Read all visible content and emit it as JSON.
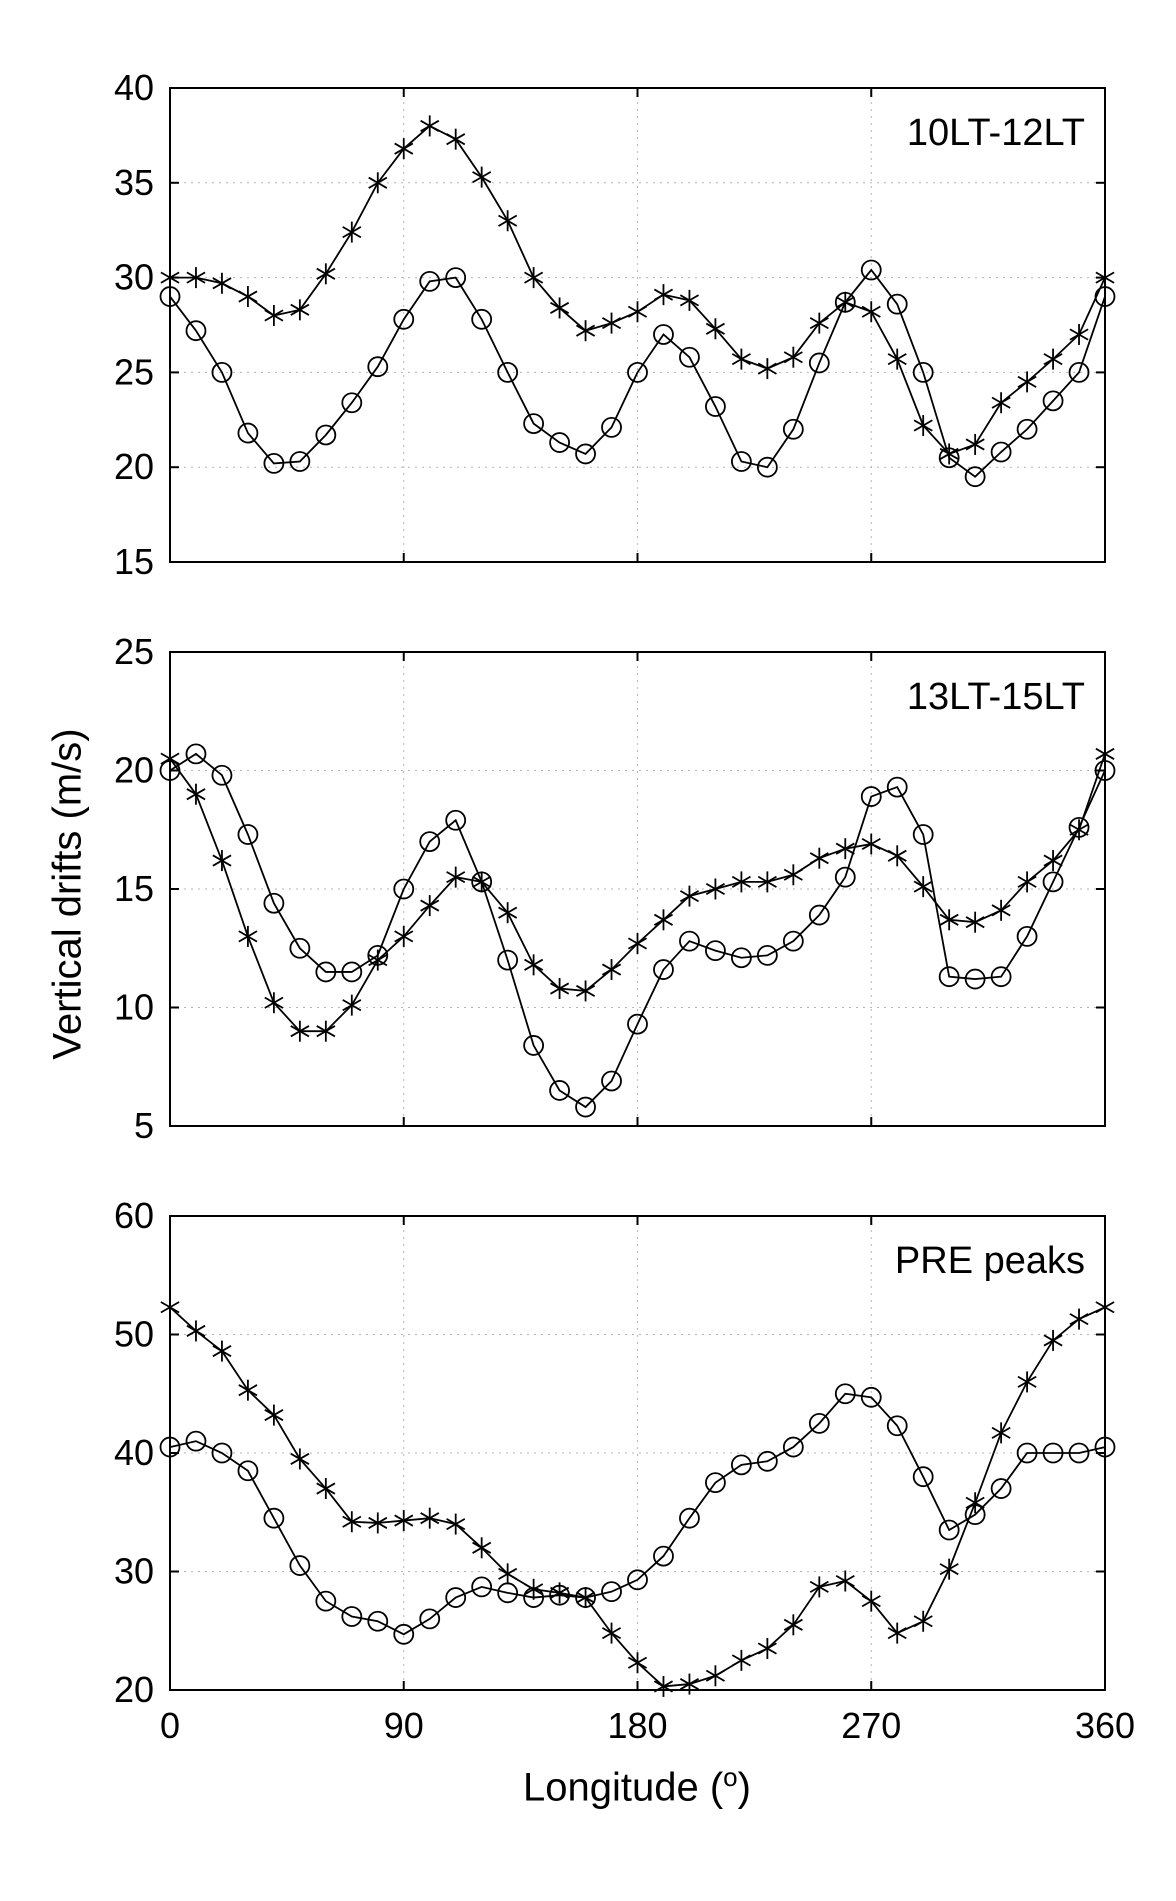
{
  "figure": {
    "ylabel": "Vertical drifts (m/s)",
    "xlabel_pre": "Longitude (",
    "xlabel_sup": "o",
    "xlabel_post": ")",
    "line_color": "#000000",
    "grid_color": "#b5b5b5",
    "background": "#ffffff"
  },
  "chart_data": [
    {
      "type": "line",
      "title": "10LT-12LT",
      "xlabel": "Longitude (deg)",
      "ylabel": "Vertical drifts (m/s)",
      "xlim": [
        0,
        360
      ],
      "ylim": [
        15,
        40
      ],
      "xticks": [
        0,
        90,
        180,
        270,
        360
      ],
      "yticks": [
        15,
        20,
        25,
        30,
        35,
        40
      ],
      "grid": true,
      "x": [
        0,
        10,
        20,
        30,
        40,
        50,
        60,
        70,
        80,
        90,
        100,
        110,
        120,
        130,
        140,
        150,
        160,
        170,
        180,
        190,
        200,
        210,
        220,
        230,
        240,
        250,
        260,
        270,
        280,
        290,
        300,
        310,
        320,
        330,
        340,
        350,
        360
      ],
      "series": [
        {
          "name": "asterisk-series",
          "marker": "asterisk",
          "values": [
            30,
            30,
            29.7,
            29,
            28,
            28.3,
            30.2,
            32.4,
            35,
            36.8,
            38,
            37.3,
            35.3,
            33,
            30,
            28.4,
            27.2,
            27.6,
            28.2,
            29.1,
            28.8,
            27.3,
            25.7,
            25.2,
            25.8,
            27.6,
            28.7,
            28.2,
            25.7,
            22.2,
            20.7,
            21.2,
            23.4,
            24.5,
            25.7,
            27,
            30
          ]
        },
        {
          "name": "circle-series",
          "marker": "circle",
          "values": [
            29,
            27.2,
            25,
            21.8,
            20.2,
            20.3,
            21.7,
            23.4,
            25.3,
            27.8,
            29.8,
            30,
            27.8,
            25,
            22.3,
            21.3,
            20.7,
            22.1,
            25,
            27,
            25.8,
            23.2,
            20.3,
            20,
            22,
            25.5,
            28.7,
            30.4,
            28.6,
            25,
            20.5,
            19.5,
            20.8,
            22,
            23.5,
            25,
            29
          ]
        }
      ]
    },
    {
      "type": "line",
      "title": "13LT-15LT",
      "xlabel": "Longitude (deg)",
      "ylabel": "Vertical drifts (m/s)",
      "xlim": [
        0,
        360
      ],
      "ylim": [
        5,
        25
      ],
      "xticks": [
        0,
        90,
        180,
        270,
        360
      ],
      "yticks": [
        5,
        10,
        15,
        20,
        25
      ],
      "grid": true,
      "x": [
        0,
        10,
        20,
        30,
        40,
        50,
        60,
        70,
        80,
        90,
        100,
        110,
        120,
        130,
        140,
        150,
        160,
        170,
        180,
        190,
        200,
        210,
        220,
        230,
        240,
        250,
        260,
        270,
        280,
        290,
        300,
        310,
        320,
        330,
        340,
        350,
        360
      ],
      "series": [
        {
          "name": "asterisk-series",
          "marker": "asterisk",
          "values": [
            20.5,
            19,
            16.2,
            13,
            10.2,
            9,
            9,
            10.1,
            12,
            13,
            14.3,
            15.5,
            15.3,
            14,
            11.8,
            10.8,
            10.7,
            11.6,
            12.7,
            13.7,
            14.7,
            15,
            15.3,
            15.3,
            15.6,
            16.3,
            16.7,
            16.9,
            16.4,
            15.1,
            13.7,
            13.6,
            14.1,
            15.3,
            16.2,
            17.5,
            20.7
          ]
        },
        {
          "name": "circle-series",
          "marker": "circle",
          "values": [
            20,
            20.7,
            19.8,
            17.3,
            14.4,
            12.5,
            11.5,
            11.5,
            12.2,
            15,
            17,
            17.9,
            15.3,
            12,
            8.4,
            6.5,
            5.8,
            6.9,
            9.3,
            11.6,
            12.8,
            12.4,
            12.1,
            12.2,
            12.8,
            13.9,
            15.5,
            18.9,
            19.3,
            17.3,
            11.3,
            11.2,
            11.3,
            13,
            15.3,
            17.6,
            20
          ]
        }
      ]
    },
    {
      "type": "line",
      "title": "PRE peaks",
      "xlabel": "Longitude (deg)",
      "ylabel": "Vertical drifts (m/s)",
      "xlim": [
        0,
        360
      ],
      "ylim": [
        20,
        60
      ],
      "xticks": [
        0,
        90,
        180,
        270,
        360
      ],
      "yticks": [
        20,
        30,
        40,
        50,
        60
      ],
      "grid": true,
      "x": [
        0,
        10,
        20,
        30,
        40,
        50,
        60,
        70,
        80,
        90,
        100,
        110,
        120,
        130,
        140,
        150,
        160,
        170,
        180,
        190,
        200,
        210,
        220,
        230,
        240,
        250,
        260,
        270,
        280,
        290,
        300,
        310,
        320,
        330,
        340,
        350,
        360
      ],
      "series": [
        {
          "name": "asterisk-series",
          "marker": "asterisk",
          "values": [
            52.3,
            50.3,
            48.6,
            45.3,
            43.2,
            39.5,
            37,
            34.2,
            34.1,
            34.3,
            34.5,
            34,
            32,
            29.8,
            28.5,
            28.2,
            27.8,
            24.8,
            22.3,
            20.3,
            20.5,
            21.2,
            22.5,
            23.5,
            25.5,
            28.7,
            29.2,
            27.5,
            24.8,
            25.8,
            30.2,
            35.8,
            41.7,
            46,
            49.5,
            51.3,
            52.3
          ]
        },
        {
          "name": "circle-series",
          "marker": "circle",
          "values": [
            40.5,
            41,
            40,
            38.5,
            34.5,
            30.5,
            27.5,
            26.2,
            25.8,
            24.7,
            26,
            27.8,
            28.7,
            28.2,
            27.8,
            28,
            27.8,
            28.3,
            29.3,
            31.3,
            34.5,
            37.5,
            39,
            39.3,
            40.5,
            42.5,
            45,
            44.7,
            42.3,
            38,
            33.5,
            34.8,
            37,
            40,
            40,
            40,
            40.5
          ]
        }
      ]
    }
  ]
}
